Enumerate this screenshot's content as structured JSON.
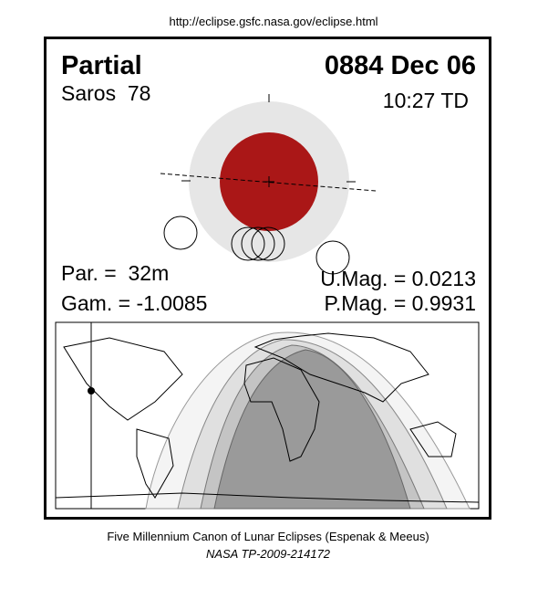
{
  "header": {
    "url": "http://eclipse.gsfc.nasa.gov/eclipse.html"
  },
  "eclipse": {
    "type": "Partial",
    "date": "0884 Dec 06",
    "saros": "Saros  78",
    "time": "10:27 TD",
    "par": "Par. =  32m",
    "gam": "Gam. = -1.0085",
    "umag": "U.Mag. = 0.0213",
    "pmag": "P.Mag. = 0.9931"
  },
  "footer": {
    "line1": "Five Millennium Canon of Lunar Eclipses (Espenak & Meeus)",
    "line2": "NASA TP-2009-214172"
  }
}
